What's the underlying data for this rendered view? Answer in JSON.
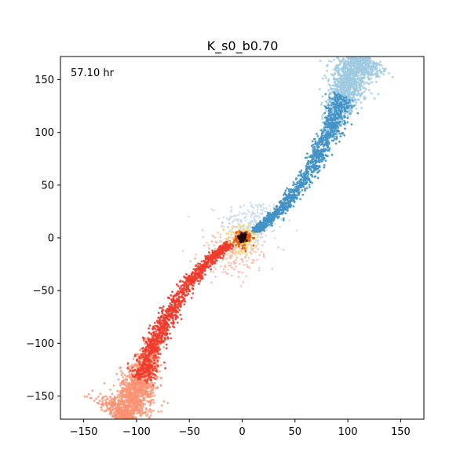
{
  "chart_data": {
    "type": "scatter",
    "title": "K_s0_b0.70",
    "annotation": "57.10 hr",
    "xlabel": "",
    "ylabel": "",
    "xlim": [
      -172,
      172
    ],
    "ylim": [
      -172,
      172
    ],
    "xticks": [
      -150,
      -100,
      -50,
      0,
      50,
      100,
      150
    ],
    "yticks": [
      -150,
      -100,
      -50,
      0,
      50,
      100,
      150
    ],
    "xtick_labels": [
      "−150",
      "−100",
      "−50",
      "0",
      "50",
      "100",
      "150"
    ],
    "ytick_labels": [
      "−150",
      "−100",
      "−50",
      "0",
      "50",
      "100",
      "150"
    ],
    "grid": false,
    "legend": "none",
    "colors": {
      "blue_dark": "#4292c6",
      "blue_light": "#9ecae1",
      "blue_faint": "#c6dbef",
      "red_dark": "#ef3b2c",
      "red_light": "#fc9272",
      "red_faint": "#fcbba1",
      "core_dark": "#1a0a0a",
      "core_mid": "#e6550d",
      "core_bright": "#fed976"
    },
    "series": [
      {
        "color_key": "blue",
        "spine": [
          [
            10,
            5
          ],
          [
            20,
            12
          ],
          [
            35,
            25
          ],
          [
            50,
            42
          ],
          [
            65,
            65
          ],
          [
            75,
            85
          ],
          [
            85,
            105
          ],
          [
            92,
            125
          ],
          [
            100,
            145
          ],
          [
            108,
            165
          ],
          [
            115,
            175
          ]
        ],
        "cloud_center": [
          92,
          135
        ],
        "cloud_spread": [
          12,
          25
        ],
        "faint_center": [
          10,
          15
        ],
        "faint_spread": [
          25,
          18
        ]
      },
      {
        "color_key": "red",
        "spine": [
          [
            -10,
            -5
          ],
          [
            -20,
            -12
          ],
          [
            -35,
            -25
          ],
          [
            -50,
            -42
          ],
          [
            -65,
            -65
          ],
          [
            -75,
            -85
          ],
          [
            -85,
            -105
          ],
          [
            -92,
            -125
          ],
          [
            -100,
            -145
          ],
          [
            -108,
            -165
          ],
          [
            -115,
            -175
          ]
        ],
        "cloud_center": [
          -110,
          -135
        ],
        "cloud_spread": [
          12,
          25
        ],
        "faint_center": [
          -10,
          -15
        ],
        "faint_spread": [
          25,
          18
        ]
      }
    ],
    "core": {
      "center": [
        0,
        0
      ],
      "radius": 12
    }
  }
}
